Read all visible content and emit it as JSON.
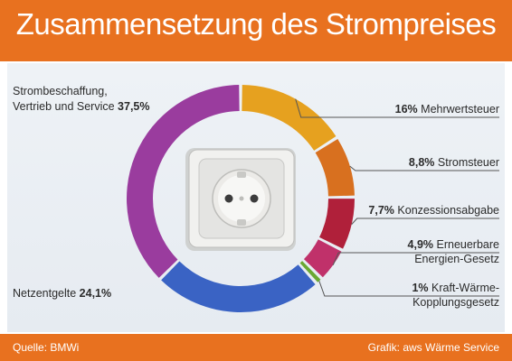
{
  "header": {
    "title": "Zusammensetzung des Strompreises"
  },
  "footer": {
    "source": "Quelle: BMWi",
    "credit": "Grafik: aws Wärme Service"
  },
  "colors": {
    "header": "#e8711f",
    "slices": [
      "#e6a11f",
      "#d8701f",
      "#b0203a",
      "#c0316a",
      "#6aa833",
      "#2e7d3f",
      "#3a63c4",
      "#9a3c9e"
    ]
  },
  "chart_data": {
    "type": "pie",
    "title": "Zusammensetzung des Strompreises",
    "unit": "%",
    "slices": [
      {
        "label_lines": [
          "Mehrwertsteuer"
        ],
        "value": 16,
        "value_text": "16%",
        "color": "#e6a11f"
      },
      {
        "label_lines": [
          "Stromsteuer"
        ],
        "value": 8.8,
        "value_text": "8,8%",
        "color": "#d8701f"
      },
      {
        "label_lines": [
          "Konzessionsabgabe"
        ],
        "value": 7.7,
        "value_text": "7,7%",
        "color": "#b0203a"
      },
      {
        "label_lines": [
          "Erneuerbare",
          "Energien-Gesetz"
        ],
        "value": 4.9,
        "value_text": "4,9%",
        "color": "#c0316a"
      },
      {
        "label_lines": [
          "Kraft-Wärme-",
          "Kopplungsgesetz"
        ],
        "value": 1,
        "value_text": "1%",
        "color": "#6aa833"
      },
      {
        "label_lines": [
          "Netzentgelte"
        ],
        "value": 24.1,
        "value_text": "24,1%",
        "color": "#3a63c4"
      },
      {
        "label_lines": [
          "Strombeschaffung,",
          "Vertrieb und Service"
        ],
        "value": 37.5,
        "value_text": "37,5%",
        "color": "#9a3c9e"
      }
    ]
  }
}
